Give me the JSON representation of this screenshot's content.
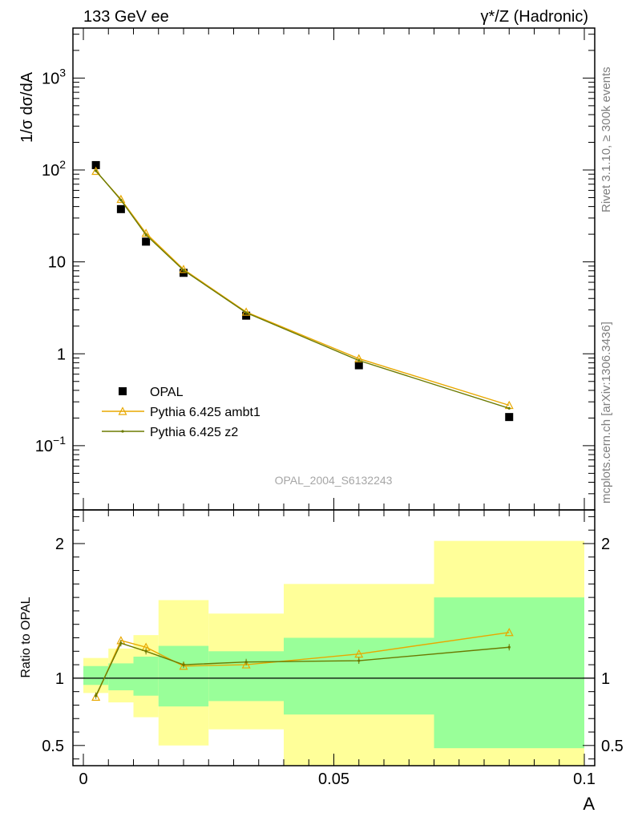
{
  "header": {
    "left": "133 GeV ee",
    "right": "γ*/Z (Hadronic)"
  },
  "side_labels": {
    "rivet": "Rivet 3.1.10, ≥ 300k events",
    "mcplots": "mcplots.cern.ch [arXiv:1306.3436]"
  },
  "analysis_id": "OPAL_2004_S6132243",
  "colors": {
    "data": "#000000",
    "ambt1": "#e8a800",
    "z2": "#6b7a00",
    "band_inner": "#99ff99",
    "band_outer": "#ffff99"
  },
  "chart_data": [
    {
      "type": "scatter",
      "panel": "main",
      "ylabel": "1/σ dσ/dA",
      "yscale": "log",
      "ylim": [
        0.02,
        3500
      ],
      "xlim": [
        0,
        0.1
      ],
      "y_ticks": [
        {
          "value": 1000,
          "label": "10",
          "exp": "3"
        },
        {
          "value": 100,
          "label": "10",
          "exp": "2"
        },
        {
          "value": 10,
          "label": "10",
          "exp": ""
        },
        {
          "value": 1,
          "label": "1",
          "exp": ""
        },
        {
          "value": 0.1,
          "label": "10",
          "exp": "−1"
        }
      ],
      "x_bins": [
        [
          0,
          0.005
        ],
        [
          0.005,
          0.01
        ],
        [
          0.01,
          0.015
        ],
        [
          0.015,
          0.025
        ],
        [
          0.025,
          0.04
        ],
        [
          0.04,
          0.07
        ],
        [
          0.07,
          0.1
        ]
      ],
      "x": [
        0.0025,
        0.0075,
        0.0125,
        0.02,
        0.0325,
        0.055,
        0.085
      ],
      "series": [
        {
          "name": "OPAL",
          "marker": "square",
          "values": [
            113,
            37.5,
            16.6,
            7.6,
            2.6,
            0.75,
            0.205
          ]
        },
        {
          "name": "Pythia 6.425 ambt1",
          "marker": "triangle",
          "values": [
            97,
            48.0,
            20.5,
            8.3,
            2.85,
            0.885,
            0.275
          ]
        },
        {
          "name": "Pythia 6.425 z2",
          "marker": "dot",
          "values": [
            98,
            47.0,
            19.7,
            8.1,
            2.8,
            0.845,
            0.255
          ]
        }
      ],
      "legend_position": "bottom-left"
    },
    {
      "type": "line",
      "panel": "ratio",
      "ylabel": "Ratio to OPAL",
      "xlabel": "A",
      "ylim": [
        0.35,
        2.25
      ],
      "xlim": [
        0,
        0.1
      ],
      "x_ticks": [
        {
          "value": 0,
          "label": "0"
        },
        {
          "value": 0.05,
          "label": "0.05"
        },
        {
          "value": 0.1,
          "label": "0.1"
        }
      ],
      "y_ticks": [
        {
          "value": 0.5,
          "label": "0.5"
        },
        {
          "value": 1,
          "label": "1"
        },
        {
          "value": 2,
          "label": "2"
        }
      ],
      "x_bins": [
        [
          0,
          0.005
        ],
        [
          0.005,
          0.01
        ],
        [
          0.01,
          0.015
        ],
        [
          0.015,
          0.025
        ],
        [
          0.025,
          0.04
        ],
        [
          0.04,
          0.07
        ],
        [
          0.07,
          0.1
        ]
      ],
      "band_inner": [
        [
          0.95,
          1.09
        ],
        [
          0.91,
          1.11
        ],
        [
          0.87,
          1.16
        ],
        [
          0.79,
          1.24
        ],
        [
          0.83,
          1.2
        ],
        [
          0.73,
          1.3
        ],
        [
          0.48,
          1.6
        ]
      ],
      "band_outer": [
        [
          0.89,
          1.15
        ],
        [
          0.82,
          1.22
        ],
        [
          0.71,
          1.32
        ],
        [
          0.5,
          1.58
        ],
        [
          0.62,
          1.48
        ],
        [
          0.3,
          1.7
        ],
        [
          0.3,
          2.02
        ]
      ],
      "x": [
        0.0025,
        0.0075,
        0.0125,
        0.02,
        0.0325,
        0.055,
        0.085
      ],
      "series": [
        {
          "name": "Pythia 6.425 ambt1",
          "values": [
            0.86,
            1.28,
            1.23,
            1.09,
            1.1,
            1.18,
            1.34
          ]
        },
        {
          "name": "Pythia 6.425 z2",
          "values": [
            0.87,
            1.26,
            1.2,
            1.1,
            1.12,
            1.13,
            1.23
          ]
        }
      ]
    }
  ]
}
